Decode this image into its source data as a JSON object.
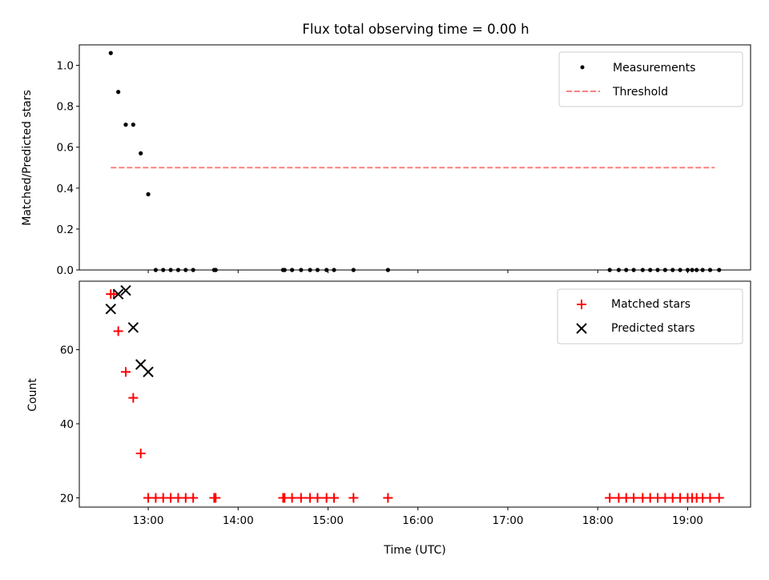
{
  "title": "Flux total observing time = 0.00 h",
  "chart_data": [
    {
      "type": "scatter",
      "ylabel": "Matched/Predicted stars",
      "xlabel": "",
      "xlim": [
        "12:14",
        "19:42"
      ],
      "ylim": [
        0,
        1.1
      ],
      "yticks": [
        0.0,
        0.2,
        0.4,
        0.6,
        0.8,
        1.0
      ],
      "ytick_labels": [
        "0.0",
        "0.2",
        "0.4",
        "0.6",
        "0.8",
        "1.0"
      ],
      "xticks": [
        "13:00",
        "14:00",
        "15:00",
        "16:00",
        "17:00",
        "18:00",
        "19:00"
      ],
      "show_xtick_labels": false,
      "legend_position": "top-right",
      "series": [
        {
          "name": "Measurements",
          "marker": "dot",
          "color": "#000000",
          "x": [
            "12:35",
            "12:40",
            "12:45",
            "12:50",
            "12:55",
            "13:00",
            "13:05",
            "13:10",
            "13:15",
            "13:20",
            "13:25",
            "13:30",
            "13:44",
            "13:45",
            "14:30",
            "14:31",
            "14:36",
            "14:42",
            "14:48",
            "14:53",
            "14:59",
            "15:04",
            "15:17",
            "15:40",
            "18:08",
            "18:14",
            "18:19",
            "18:24",
            "18:30",
            "18:35",
            "18:40",
            "18:45",
            "18:50",
            "18:55",
            "19:00",
            "19:03",
            "19:06",
            "19:10",
            "19:15",
            "19:21"
          ],
          "y": [
            1.06,
            0.87,
            0.71,
            0.71,
            0.57,
            0.37,
            0,
            0,
            0,
            0,
            0,
            0,
            0,
            0,
            0,
            0,
            0,
            0,
            0,
            0,
            0,
            0,
            0,
            0,
            0,
            0,
            0,
            0,
            0,
            0,
            0,
            0,
            0,
            0,
            0,
            0,
            0,
            0,
            0,
            0
          ]
        },
        {
          "name": "Threshold",
          "style": "dashed",
          "color": "#ff7f7f",
          "x": [
            "12:35",
            "19:18"
          ],
          "y": [
            0.5,
            0.5
          ]
        }
      ]
    },
    {
      "type": "scatter",
      "ylabel": "Count",
      "xlabel": "Time (UTC)",
      "xlim": [
        "12:14",
        "19:42"
      ],
      "ylim": [
        17.5,
        78.5
      ],
      "yticks": [
        20,
        40,
        60
      ],
      "ytick_labels": [
        "20",
        "40",
        "60"
      ],
      "xticks": [
        "13:00",
        "14:00",
        "15:00",
        "16:00",
        "17:00",
        "18:00",
        "19:00"
      ],
      "xtick_labels": [
        "13:00",
        "14:00",
        "15:00",
        "16:00",
        "17:00",
        "18:00",
        "19:00"
      ],
      "legend_position": "top-right",
      "series": [
        {
          "name": "Matched stars",
          "marker": "plus",
          "color": "#ff0000",
          "x": [
            "12:35",
            "12:37",
            "12:40",
            "12:45",
            "12:50",
            "12:55",
            "13:00",
            "13:05",
            "13:10",
            "13:15",
            "13:20",
            "13:25",
            "13:30",
            "13:44",
            "13:45",
            "14:30",
            "14:31",
            "14:36",
            "14:42",
            "14:48",
            "14:53",
            "14:59",
            "15:04",
            "15:17",
            "15:40",
            "18:08",
            "18:14",
            "18:19",
            "18:24",
            "18:30",
            "18:35",
            "18:40",
            "18:45",
            "18:50",
            "18:55",
            "19:00",
            "19:03",
            "19:06",
            "19:10",
            "19:15",
            "19:21"
          ],
          "y": [
            75,
            75,
            65,
            54,
            47,
            32,
            20,
            20,
            20,
            20,
            20,
            20,
            20,
            20,
            20,
            20,
            20,
            20,
            20,
            20,
            20,
            20,
            20,
            20,
            20,
            20,
            20,
            20,
            20,
            20,
            20,
            20,
            20,
            20,
            20,
            20,
            20,
            20,
            20,
            20,
            20
          ]
        },
        {
          "name": "Predicted stars",
          "marker": "x",
          "color": "#000000",
          "x": [
            "12:35",
            "12:40",
            "12:45",
            "12:50",
            "12:55",
            "13:00"
          ],
          "y": [
            71,
            75,
            76,
            66,
            56,
            54
          ]
        }
      ]
    }
  ]
}
